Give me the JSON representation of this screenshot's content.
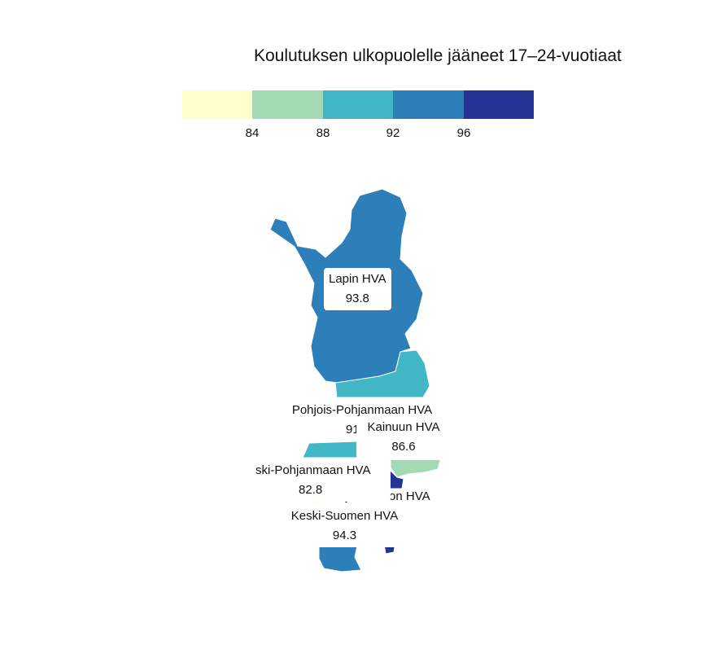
{
  "title": "Koulutuksen ulkopuolelle jääneet 17–24-vuotiaat",
  "legend": {
    "bins": [
      {
        "color": "#ffffcc"
      },
      {
        "color": "#a1dab4"
      },
      {
        "color": "#41b6c4"
      },
      {
        "color": "#2c7fb8"
      },
      {
        "color": "#253494"
      }
    ],
    "ticks": [
      "84",
      "88",
      "92",
      "96"
    ]
  },
  "regions": [
    {
      "name": "Lapin HVA",
      "value": "93.8",
      "color": "#2c7fb8"
    },
    {
      "name": "Pohjois-Pohjanmaan HVA",
      "value": "91",
      "color": "#41b6c4"
    },
    {
      "name": "Kainuun HVA",
      "value": "86.6",
      "color": "#a1dab4"
    },
    {
      "name": "ski-Pohjanmaan HVA",
      "value": "82.8",
      "color": "#ffffcc"
    },
    {
      "name": "Pohjois-Savon HVA",
      "value": "",
      "color": "#253494"
    },
    {
      "name": "Keski-Suomen HVA",
      "value": "94.3",
      "color": "#2c7fb8"
    }
  ]
}
